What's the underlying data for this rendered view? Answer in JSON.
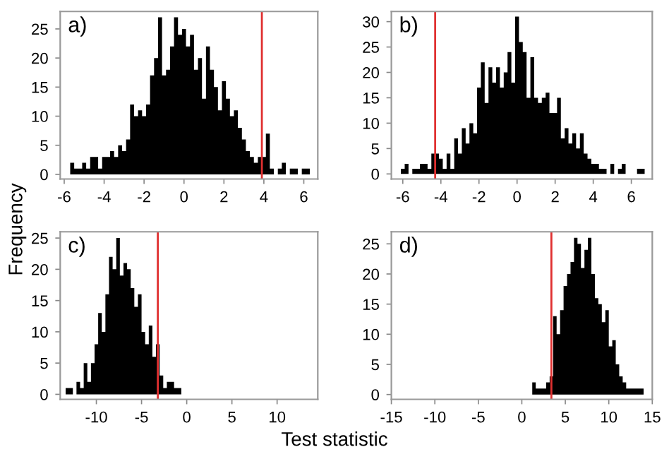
{
  "chart_data": [
    {
      "type": "histogram",
      "title": "a)",
      "ylabel": "Frequency",
      "color": "#000000",
      "bins": [
        -5.7,
        -5.5,
        -5.3,
        -5.1,
        -4.9,
        -4.7,
        -4.5,
        -4.3,
        -4.1,
        -3.9,
        -3.7,
        -3.5,
        -3.3,
        -3.1,
        -2.9,
        -2.7,
        -2.5,
        -2.3,
        -2.1,
        -1.9,
        -1.7,
        -1.5,
        -1.3,
        -1.1,
        -0.9,
        -0.7,
        -0.5,
        -0.3,
        -0.1,
        0.1,
        0.3,
        0.5,
        0.7,
        0.9,
        1.1,
        1.3,
        1.5,
        1.7,
        1.9,
        2.1,
        2.3,
        2.5,
        2.7,
        2.9,
        3.1,
        3.3,
        3.5,
        3.7,
        3.9,
        4.1,
        4.3,
        4.5,
        4.7,
        4.9,
        5.1,
        5.3,
        5.5,
        5.7,
        5.9,
        6.1,
        6.3
      ],
      "values": [
        2,
        1,
        1,
        2,
        1,
        3,
        3,
        1,
        3,
        3,
        4,
        3,
        5,
        4,
        6,
        12,
        10,
        11,
        10,
        12,
        17,
        20,
        27,
        17,
        18,
        22,
        27,
        24,
        25,
        22,
        24,
        18,
        20,
        13,
        22,
        18,
        15,
        11,
        16,
        13,
        10,
        11,
        8,
        6,
        4,
        3,
        2,
        3,
        3,
        7,
        1,
        0,
        1,
        2,
        0,
        1,
        1,
        0,
        1,
        1
      ],
      "xlim": [
        -6.2,
        6.7
      ],
      "xticks": [
        -6,
        -4,
        -2,
        0,
        2,
        4,
        6
      ],
      "ylim": [
        -0.8,
        28
      ],
      "yticks": [
        0,
        5,
        10,
        15,
        20,
        25
      ],
      "ref_lines": [
        {
          "axis": "x",
          "value": 3.9,
          "color": "#e03030"
        }
      ]
    },
    {
      "type": "histogram",
      "title": "b)",
      "color": "#000000",
      "bins": [
        -6.1,
        -5.9,
        -5.7,
        -5.5,
        -5.3,
        -5.1,
        -4.9,
        -4.7,
        -4.5,
        -4.3,
        -4.1,
        -3.9,
        -3.7,
        -3.5,
        -3.3,
        -3.1,
        -2.9,
        -2.7,
        -2.5,
        -2.3,
        -2.1,
        -1.9,
        -1.7,
        -1.5,
        -1.3,
        -1.1,
        -0.9,
        -0.7,
        -0.5,
        -0.3,
        -0.1,
        0.1,
        0.3,
        0.5,
        0.7,
        0.9,
        1.1,
        1.3,
        1.5,
        1.7,
        1.9,
        2.1,
        2.3,
        2.5,
        2.7,
        2.9,
        3.1,
        3.3,
        3.5,
        3.7,
        3.9,
        4.1,
        4.3,
        4.5,
        4.7,
        4.9,
        5.1,
        5.3,
        5.5,
        5.7,
        5.9,
        6.1,
        6.3,
        6.5,
        6.7
      ],
      "values": [
        1,
        2,
        0,
        1,
        1,
        2,
        2,
        1,
        4,
        4,
        3,
        1,
        4,
        1,
        7,
        4,
        9,
        6,
        10,
        8,
        17,
        22,
        14,
        21,
        18,
        21,
        17,
        20,
        24,
        18,
        31,
        26,
        24,
        15,
        23,
        15,
        14,
        15,
        16,
        12,
        12,
        15,
        7,
        9,
        6,
        8,
        5,
        8,
        4,
        3,
        2,
        2,
        1,
        1,
        0,
        2,
        0,
        1,
        2,
        0,
        0,
        0,
        1,
        1
      ],
      "xlim": [
        -6.6,
        7.1
      ],
      "xticks": [
        -6,
        -4,
        -2,
        0,
        2,
        4,
        6
      ],
      "ylim": [
        -1,
        32
      ],
      "yticks": [
        0,
        5,
        10,
        15,
        20,
        25,
        30
      ],
      "ref_lines": [
        {
          "axis": "x",
          "value": -4.3,
          "color": "#e03030"
        }
      ]
    },
    {
      "type": "histogram",
      "title": "c)",
      "xlabel": "Test statistic",
      "color": "#000000",
      "bins": [
        -13.4,
        -13.0,
        -12.6,
        -12.2,
        -11.8,
        -11.4,
        -11.0,
        -10.6,
        -10.2,
        -9.8,
        -9.4,
        -9.0,
        -8.6,
        -8.2,
        -7.8,
        -7.4,
        -7.0,
        -6.6,
        -6.2,
        -5.8,
        -5.4,
        -5.0,
        -4.6,
        -4.2,
        -3.8,
        -3.4,
        -3.0,
        -2.6,
        -2.2,
        -1.8,
        -1.4,
        -1.0,
        -0.6
      ],
      "values": [
        1,
        1,
        0,
        2,
        1,
        5,
        2,
        5,
        8,
        13,
        10,
        16,
        22,
        20,
        25,
        19,
        21,
        20,
        17,
        14,
        16,
        10,
        8,
        11,
        6,
        8,
        3,
        1,
        2,
        2,
        1,
        1
      ],
      "xlim": [
        -14,
        14.5
      ],
      "xticks": [
        -10,
        -5,
        0,
        5,
        10
      ],
      "ylim": [
        -0.8,
        26
      ],
      "yticks": [
        0,
        5,
        10,
        15,
        20,
        25
      ],
      "ref_lines": [
        {
          "axis": "x",
          "value": -3.2,
          "color": "#e03030"
        }
      ]
    },
    {
      "type": "histogram",
      "title": "d)",
      "color": "#000000",
      "bins": [
        1.2,
        1.6,
        2.0,
        2.4,
        2.8,
        3.2,
        3.6,
        4.0,
        4.4,
        4.8,
        5.2,
        5.6,
        6.0,
        6.4,
        6.8,
        7.2,
        7.6,
        8.0,
        8.4,
        8.8,
        9.2,
        9.6,
        10.0,
        10.4,
        10.8,
        11.2,
        11.6,
        12.0,
        12.4,
        12.8,
        13.2,
        13.6,
        14.0
      ],
      "values": [
        2,
        1,
        1,
        1,
        2,
        3,
        13,
        10,
        14,
        18,
        20,
        22,
        26,
        25,
        21,
        24,
        26,
        20,
        16,
        15,
        12,
        14,
        8,
        9,
        5,
        3,
        2,
        1,
        1,
        1,
        1,
        1
      ],
      "xlim": [
        -15,
        15
      ],
      "xticks": [
        -15,
        -10,
        -5,
        0,
        5,
        10,
        15
      ],
      "ylim": [
        -0.8,
        27
      ],
      "yticks": [
        0,
        5,
        10,
        15,
        20,
        25
      ],
      "ref_lines": [
        {
          "axis": "x",
          "value": 3.4,
          "color": "#e03030"
        }
      ]
    }
  ]
}
